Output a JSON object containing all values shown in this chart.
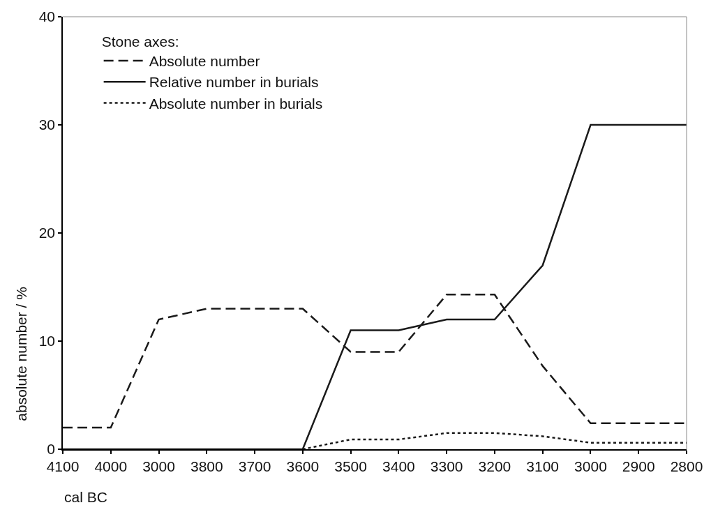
{
  "chart_data": {
    "type": "line",
    "xlabel": "cal BC",
    "ylabel": "absolute number / %",
    "legend_title": "Stone axes:",
    "categories": [
      "4100",
      "4000",
      "3000",
      "3800",
      "3700",
      "3600",
      "3500",
      "3400",
      "3300",
      "3200",
      "3100",
      "3000",
      "2900",
      "2800"
    ],
    "ylim": [
      0,
      40
    ],
    "yticks": [
      0,
      10,
      20,
      30,
      40
    ],
    "grid": false,
    "legend": "top left",
    "marker": "none",
    "series": [
      {
        "name": "Absolute number",
        "color": "#1a1a1a",
        "line_style": "dashed",
        "values": [
          2,
          2,
          12,
          13,
          13,
          13,
          9,
          9,
          14.3,
          14.3,
          7.7,
          2.4,
          2.4,
          2.4
        ]
      },
      {
        "name": "Relative number in burials",
        "color": "#1a1a1a",
        "line_style": "solid",
        "values": [
          0,
          0,
          0,
          0,
          0,
          0,
          11,
          11,
          12,
          12,
          17,
          30,
          30,
          30
        ]
      },
      {
        "name": "Absolute number in burials",
        "color": "#1a1a1a",
        "line_style": "dotted",
        "values": [
          null,
          null,
          null,
          null,
          null,
          0,
          0.9,
          0.9,
          1.5,
          1.5,
          1.2,
          0.6,
          0.6,
          0.6
        ]
      }
    ]
  }
}
